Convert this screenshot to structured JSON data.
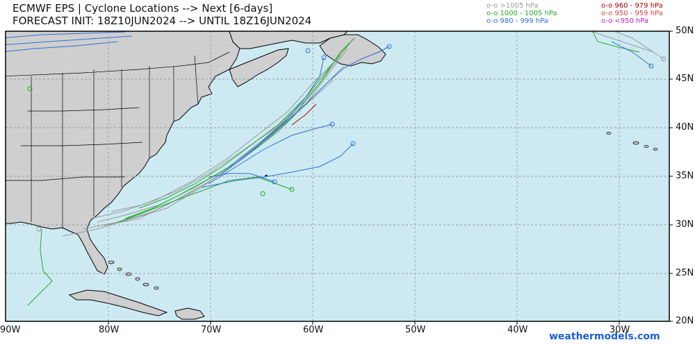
{
  "header": {
    "title_line1": "ECMWF EPS | Cyclone Locations --> Next [6-days]",
    "title_line2": "FORECAST INIT: 18Z10JUN2024 --> UNTIL 18Z16JUN2024"
  },
  "legend": [
    {
      "text": "o-o >1005 hPa",
      "color": "#999999"
    },
    {
      "text": "o-o 1000 - 1005 hPa",
      "color": "#22aa22"
    },
    {
      "text": "o-o 980 - 999 hPa",
      "color": "#2b6fd6"
    },
    {
      "text": "o-o 960 - 979 hPa",
      "color": "#aa0000"
    },
    {
      "text": "o-o 950 - 959 hPa",
      "color": "#d64040"
    },
    {
      "text": "o-o <950 hPa",
      "color": "#c020c0"
    }
  ],
  "axes": {
    "lon_labels": [
      "90W",
      "80W",
      "70W",
      "60W",
      "50W",
      "40W",
      "30W"
    ],
    "lat_labels": [
      "50N",
      "45N",
      "40N",
      "35N",
      "30N",
      "25N",
      "20N"
    ]
  },
  "colors": {
    "ocean": "#cdeaf3",
    "land": "#cfcfcf",
    "grid": "#999999",
    "border": "#000000"
  },
  "credit": "weathermodels.com"
}
